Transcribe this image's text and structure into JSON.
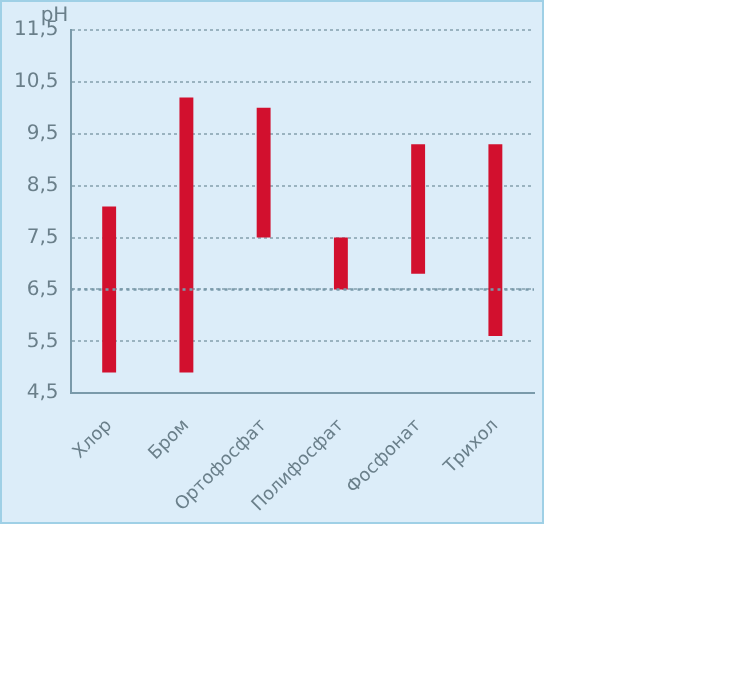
{
  "chart_data": {
    "type": "bar",
    "ylabel": "pH",
    "categories": [
      "Хлор",
      "Бром",
      "Ортофосфат",
      "Полифосфат",
      "Фосфонат",
      "Трихол"
    ],
    "base": [
      4.9,
      4.9,
      7.5,
      6.5,
      6.8,
      5.6
    ],
    "values": [
      3.2,
      5.3,
      2.5,
      1.0,
      2.5,
      3.7
    ],
    "color": "#d2102e",
    "ylim": [
      4.5,
      11.5
    ],
    "yticks": [
      {
        "value": 4.5,
        "label": "4,5"
      },
      {
        "value": 5.5,
        "label": "5,5"
      },
      {
        "value": 6.5,
        "label": "6,5"
      },
      {
        "value": 7.5,
        "label": "7,5"
      },
      {
        "value": 8.5,
        "label": "8,5"
      },
      {
        "value": 9.5,
        "label": "9,5"
      },
      {
        "value": 10.5,
        "label": "10,5"
      },
      {
        "value": 11.5,
        "label": "11,5"
      }
    ],
    "grid": "y",
    "ref_lines": [
      {
        "axis": "y",
        "value": 6.5,
        "color": "#7a9aaa",
        "line_style": "dotted"
      }
    ]
  }
}
